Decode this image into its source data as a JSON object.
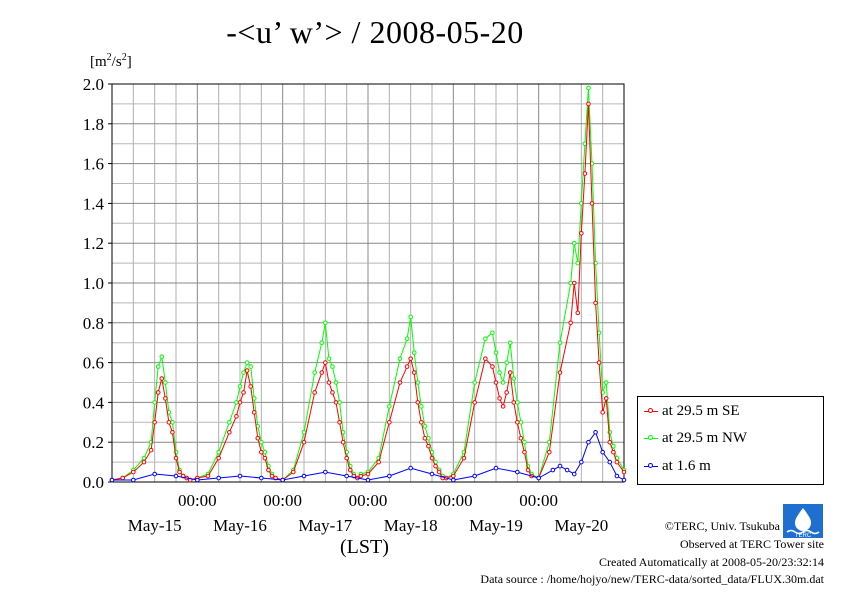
{
  "title": "-<u’ w’> / 2008-05-20",
  "unit_label": "[m²/s²]",
  "x_axis_label": "(LST)",
  "footer": {
    "copyright": "©TERC, Univ. Tsukuba",
    "observed": "Observed at TERC Tower site",
    "created": "Created Automatically at 2008-05-20/23:32:14",
    "source": "Data source : /home/hojyo/new/TERC-data/sorted_data/FLUX.30m.dat"
  },
  "colors": {
    "se": "#ff0000",
    "nw": "#00ff00",
    "low": "#0000ff",
    "grid": "#999999"
  },
  "chart_data": {
    "type": "line",
    "title": "-<u’ w’> / 2008-05-20",
    "ylabel": "[m²/s²]",
    "xlabel": "(LST)",
    "ylim": [
      0,
      2.0
    ],
    "y_ticks": [
      "0.0",
      "0.2",
      "0.4",
      "0.6",
      "0.8",
      "1.0",
      "1.2",
      "1.4",
      "1.6",
      "1.8",
      "2.0"
    ],
    "x_range_hours": [
      0,
      144
    ],
    "time_tick_labels": [
      "00:00",
      "00:00",
      "00:00",
      "00:00",
      "00:00"
    ],
    "date_labels": [
      "May-15",
      "May-16",
      "May-17",
      "May-18",
      "May-19",
      "May-20"
    ],
    "grid": true,
    "legend_position": "right",
    "series": [
      {
        "name": "at 29.5 m SE",
        "x": [
          0,
          3,
          6,
          9,
          11,
          12,
          13,
          14,
          15,
          16,
          17,
          18,
          19,
          20,
          21,
          22,
          24,
          27,
          30,
          33,
          35,
          36,
          37,
          38,
          39,
          40,
          41,
          42,
          43,
          44,
          45,
          46,
          48,
          51,
          54,
          57,
          59,
          60,
          61,
          62,
          63,
          64,
          65,
          66,
          67,
          68,
          69,
          70,
          72,
          75,
          78,
          81,
          83,
          84,
          85,
          86,
          87,
          88,
          89,
          90,
          91,
          92,
          93,
          94,
          96,
          99,
          102,
          105,
          107,
          108,
          109,
          110,
          111,
          112,
          113,
          114,
          115,
          116,
          117,
          118,
          120,
          123,
          126,
          129,
          130,
          131,
          132,
          133,
          134,
          135,
          136,
          137,
          138,
          139,
          140,
          141,
          142,
          144
        ],
        "y": [
          0.01,
          0.02,
          0.05,
          0.1,
          0.16,
          0.3,
          0.45,
          0.52,
          0.42,
          0.3,
          0.25,
          0.12,
          0.05,
          0.03,
          0.02,
          0.01,
          0.02,
          0.03,
          0.12,
          0.25,
          0.33,
          0.4,
          0.45,
          0.56,
          0.48,
          0.35,
          0.22,
          0.15,
          0.12,
          0.06,
          0.03,
          0.02,
          0.01,
          0.05,
          0.2,
          0.45,
          0.55,
          0.6,
          0.5,
          0.45,
          0.4,
          0.3,
          0.2,
          0.12,
          0.06,
          0.03,
          0.02,
          0.03,
          0.04,
          0.1,
          0.3,
          0.5,
          0.58,
          0.62,
          0.55,
          0.4,
          0.3,
          0.22,
          0.18,
          0.12,
          0.08,
          0.05,
          0.02,
          0.02,
          0.03,
          0.12,
          0.4,
          0.62,
          0.58,
          0.5,
          0.42,
          0.38,
          0.45,
          0.55,
          0.4,
          0.3,
          0.22,
          0.15,
          0.06,
          0.03,
          0.02,
          0.15,
          0.55,
          0.8,
          1.0,
          0.85,
          1.25,
          1.55,
          1.9,
          1.4,
          0.9,
          0.6,
          0.35,
          0.42,
          0.2,
          0.15,
          0.1,
          0.05
        ]
      },
      {
        "name": "at 29.5 m NW",
        "x": [
          0,
          3,
          6,
          9,
          11,
          12,
          13,
          14,
          15,
          16,
          17,
          18,
          19,
          20,
          21,
          22,
          24,
          27,
          30,
          33,
          35,
          36,
          37,
          38,
          39,
          40,
          41,
          42,
          43,
          44,
          45,
          46,
          48,
          51,
          54,
          57,
          59,
          60,
          61,
          62,
          63,
          64,
          65,
          66,
          67,
          68,
          69,
          70,
          72,
          75,
          78,
          81,
          83,
          84,
          85,
          86,
          87,
          88,
          89,
          90,
          91,
          92,
          93,
          94,
          96,
          99,
          102,
          105,
          107,
          108,
          109,
          110,
          111,
          112,
          113,
          114,
          115,
          116,
          117,
          118,
          120,
          123,
          126,
          129,
          130,
          131,
          132,
          133,
          134,
          135,
          136,
          137,
          138,
          139,
          140,
          141,
          142,
          144
        ],
        "y": [
          0.01,
          0.02,
          0.06,
          0.12,
          0.2,
          0.4,
          0.58,
          0.63,
          0.5,
          0.35,
          0.3,
          0.15,
          0.06,
          0.03,
          0.02,
          0.01,
          0.02,
          0.04,
          0.15,
          0.3,
          0.4,
          0.48,
          0.55,
          0.6,
          0.58,
          0.42,
          0.28,
          0.2,
          0.15,
          0.08,
          0.04,
          0.02,
          0.01,
          0.06,
          0.25,
          0.55,
          0.7,
          0.8,
          0.62,
          0.58,
          0.5,
          0.4,
          0.25,
          0.15,
          0.08,
          0.04,
          0.02,
          0.04,
          0.05,
          0.12,
          0.38,
          0.62,
          0.72,
          0.83,
          0.65,
          0.5,
          0.38,
          0.28,
          0.22,
          0.15,
          0.1,
          0.06,
          0.03,
          0.02,
          0.04,
          0.15,
          0.5,
          0.72,
          0.75,
          0.65,
          0.55,
          0.5,
          0.6,
          0.7,
          0.52,
          0.4,
          0.3,
          0.2,
          0.08,
          0.04,
          0.02,
          0.2,
          0.7,
          1.0,
          1.2,
          1.1,
          1.4,
          1.7,
          1.98,
          1.6,
          1.1,
          0.75,
          0.45,
          0.5,
          0.25,
          0.18,
          0.12,
          0.06
        ]
      },
      {
        "name": "at 1.6 m",
        "x": [
          0,
          6,
          12,
          18,
          24,
          30,
          36,
          42,
          48,
          54,
          60,
          66,
          72,
          78,
          84,
          90,
          96,
          102,
          108,
          114,
          120,
          124,
          126,
          128,
          130,
          132,
          134,
          136,
          138,
          140,
          142,
          144
        ],
        "y": [
          0.01,
          0.01,
          0.04,
          0.03,
          0.01,
          0.02,
          0.03,
          0.02,
          0.01,
          0.03,
          0.05,
          0.03,
          0.01,
          0.03,
          0.07,
          0.04,
          0.01,
          0.03,
          0.07,
          0.05,
          0.02,
          0.06,
          0.08,
          0.06,
          0.04,
          0.1,
          0.2,
          0.25,
          0.15,
          0.1,
          0.03,
          0.01
        ]
      }
    ]
  }
}
